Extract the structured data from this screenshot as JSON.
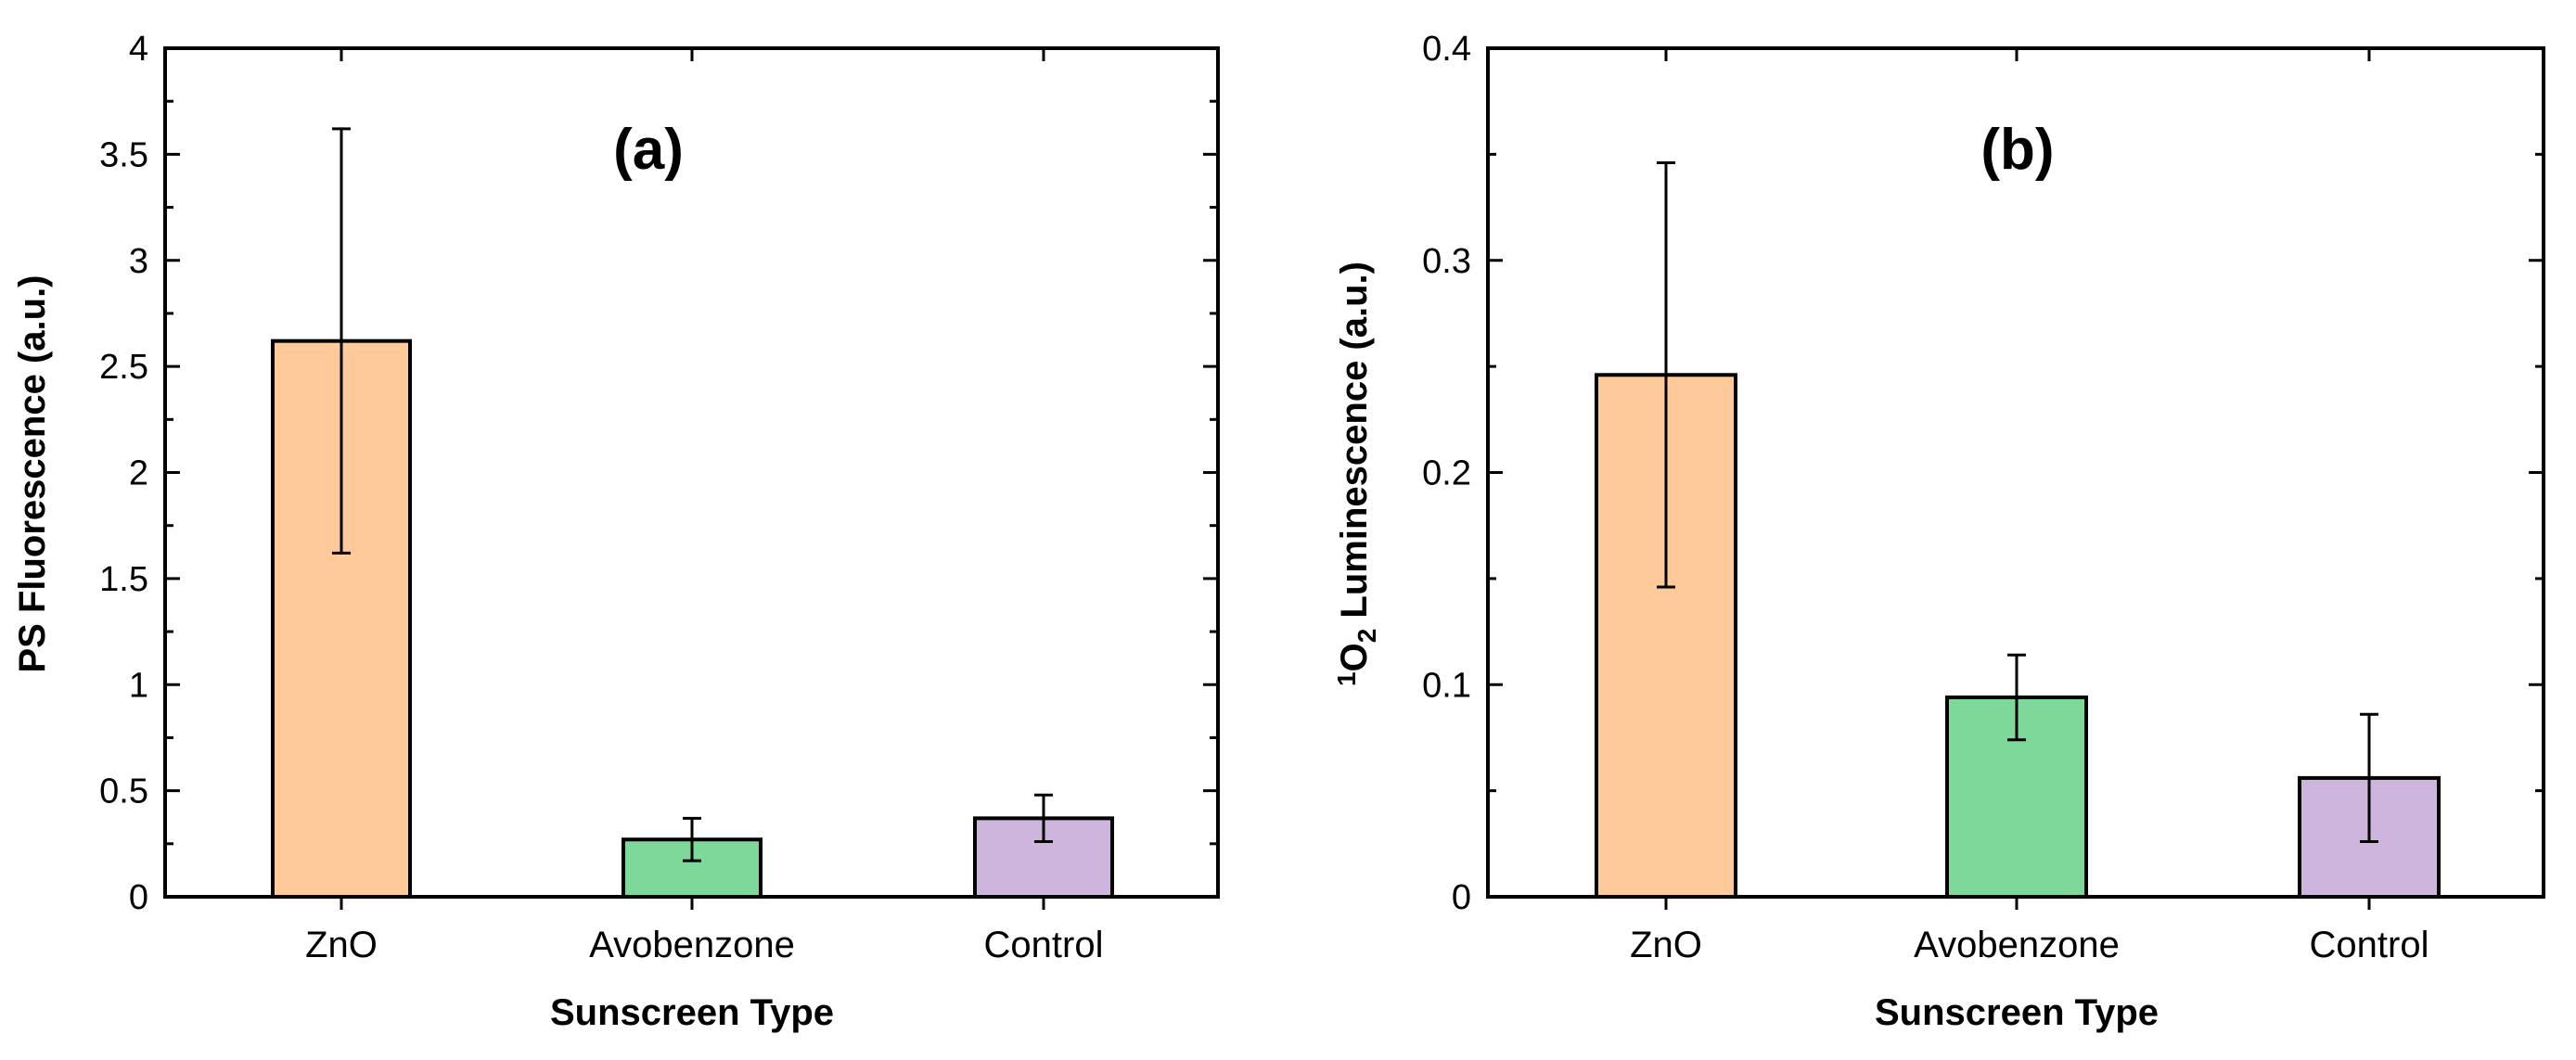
{
  "chart_data": [
    {
      "type": "bar",
      "panel": "(a)",
      "categories": [
        "ZnO",
        "Avobenzone",
        "Control"
      ],
      "values": [
        2.62,
        0.27,
        0.37
      ],
      "errors": [
        1.0,
        0.1,
        0.11
      ],
      "colors": [
        "#FFCA99",
        "#7ED89A",
        "#CDB5DE"
      ],
      "xlabel": "Sunscreen Type",
      "ylabel": "PS Fluorescence (a.u.)",
      "ylim": [
        0,
        4
      ],
      "yticks": [
        "0",
        "0.5",
        "1",
        "1.5",
        "2",
        "2.5",
        "3",
        "3.5",
        "4"
      ],
      "grid": false
    },
    {
      "type": "bar",
      "panel": "(b)",
      "categories": [
        "ZnO",
        "Avobenzone",
        "Control"
      ],
      "values": [
        0.246,
        0.094,
        0.056
      ],
      "errors": [
        0.1,
        0.02,
        0.03
      ],
      "colors": [
        "#FFCA99",
        "#7ED89A",
        "#CDB5DE"
      ],
      "xlabel": "Sunscreen Type",
      "ylabel_parts": {
        "sup": "1",
        "base": "O",
        "sub": "2",
        "rest": " Luminescence (a.u.)"
      },
      "ylim": [
        0,
        0.4
      ],
      "yticks": [
        "0",
        "0.1",
        "0.2",
        "0.3",
        "0.4"
      ],
      "grid": false
    }
  ]
}
